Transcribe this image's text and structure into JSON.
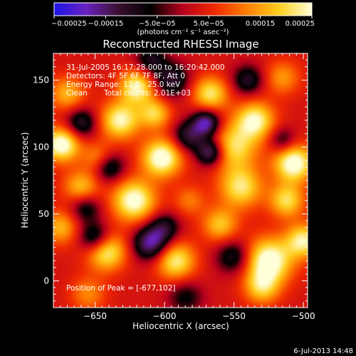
{
  "chart_data": {
    "type": "heatmap",
    "title": "Reconstructed RHESSI Image",
    "xlabel": "Heliocentric X (arcsec)",
    "ylabel": "Heliocentric Y (arcsec)",
    "xlim": [
      -680,
      -497
    ],
    "ylim": [
      -20,
      170
    ],
    "xticks": [
      -650,
      -600,
      -550,
      -500
    ],
    "yticks": [
      0,
      50,
      100,
      150
    ],
    "xtick_labels": [
      "−650",
      "−600",
      "−550",
      "−500"
    ],
    "ytick_labels": [
      "0",
      "50",
      "100",
      "150"
    ],
    "colorbar": {
      "range": [
        -0.00025,
        0.00025
      ],
      "tick_values": [
        -0.00025,
        -0.00015,
        -5e-05,
        5e-05,
        0.00015,
        0.00025
      ],
      "tick_labels": [
        "−0.00025",
        "−0.00015",
        "−5.0e−05",
        "5.0e−05",
        "0.00015",
        "0.00025"
      ],
      "units_label": "(photons cm⁻² s⁻¹ asec⁻²)",
      "colors": [
        "#1a14e6",
        "#6a22c0",
        "#3a1030",
        "#000000",
        "#b8001e",
        "#f02a00",
        "#ff8000",
        "#ffd020",
        "#ffffd8"
      ]
    },
    "annotations": {
      "time_range": "31-Jul-2005 16:17:28.000 to 16:20:42.000",
      "detectors": "Detectors: 4F 5F 6F 7F 8F, Att 0",
      "energy": "Energy Range: 12.0 - 25.0 keV",
      "clean": "Clean",
      "total_counts": "Total counts: 2.01E+03",
      "peak": "Position of Peak = [-677,102]"
    },
    "sources": [
      {
        "x": -674,
        "y": 102,
        "v": 1.0,
        "s": 9
      },
      {
        "x": -632,
        "y": 120,
        "v": 0.85,
        "s": 10
      },
      {
        "x": -602,
        "y": 92,
        "v": 1.0,
        "s": 10
      },
      {
        "x": -622,
        "y": 60,
        "v": 0.95,
        "s": 11
      },
      {
        "x": -550,
        "y": 100,
        "v": 0.7,
        "s": 12
      },
      {
        "x": -545,
        "y": 70,
        "v": 0.75,
        "s": 11
      },
      {
        "x": -507,
        "y": 88,
        "v": 1.0,
        "s": 10
      },
      {
        "x": -620,
        "y": 145,
        "v": 0.85,
        "s": 9
      },
      {
        "x": -567,
        "y": 140,
        "v": 0.75,
        "s": 9
      },
      {
        "x": -535,
        "y": 120,
        "v": 0.85,
        "s": 10
      },
      {
        "x": -515,
        "y": 152,
        "v": 0.45,
        "s": 9
      },
      {
        "x": -642,
        "y": 22,
        "v": 0.85,
        "s": 10
      },
      {
        "x": -592,
        "y": 15,
        "v": 0.8,
        "s": 10
      },
      {
        "x": -525,
        "y": 15,
        "v": 1.0,
        "s": 12
      },
      {
        "x": -500,
        "y": 30,
        "v": 0.8,
        "s": 9
      },
      {
        "x": -560,
        "y": 42,
        "v": 0.6,
        "s": 9
      },
      {
        "x": -660,
        "y": 70,
        "v": 0.6,
        "s": 9
      },
      {
        "x": -670,
        "y": 140,
        "v": 0.55,
        "s": 9
      },
      {
        "x": -607,
        "y": 125,
        "v": 0.65,
        "s": 8
      },
      {
        "x": -512,
        "y": 60,
        "v": 0.7,
        "s": 9
      },
      {
        "x": -675,
        "y": 40,
        "v": 0.55,
        "s": 9
      },
      {
        "x": -648,
        "y": 92,
        "v": 0.45,
        "s": 8
      },
      {
        "x": -582,
        "y": 60,
        "v": 0.35,
        "s": 8
      },
      {
        "x": -530,
        "y": -5,
        "v": 0.6,
        "s": 9
      },
      {
        "x": -655,
        "y": -10,
        "v": 0.4,
        "s": 9
      },
      {
        "x": -650,
        "y": 32,
        "v": -0.7,
        "s": 8
      },
      {
        "x": -610,
        "y": 28,
        "v": -0.85,
        "s": 9
      },
      {
        "x": -570,
        "y": 118,
        "v": -0.9,
        "s": 7
      },
      {
        "x": -567,
        "y": 96,
        "v": -0.85,
        "s": 7
      },
      {
        "x": -583,
        "y": 108,
        "v": -0.6,
        "s": 8
      },
      {
        "x": -660,
        "y": 118,
        "v": -0.6,
        "s": 8
      },
      {
        "x": -595,
        "y": 150,
        "v": -0.6,
        "s": 9
      },
      {
        "x": -640,
        "y": 85,
        "v": -0.6,
        "s": 8
      },
      {
        "x": -600,
        "y": 40,
        "v": -0.5,
        "s": 8
      },
      {
        "x": -550,
        "y": 18,
        "v": -0.55,
        "s": 9
      },
      {
        "x": -515,
        "y": 105,
        "v": -0.45,
        "s": 7
      },
      {
        "x": -657,
        "y": 55,
        "v": -0.5,
        "s": 8
      },
      {
        "x": -540,
        "y": 150,
        "v": -0.55,
        "s": 8
      },
      {
        "x": -610,
        "y": 165,
        "v": -0.5,
        "s": 8
      },
      {
        "x": -585,
        "y": -12,
        "v": -0.4,
        "s": 9
      }
    ]
  },
  "footer": {
    "timestamp": "6-Jul-2013 14:48"
  }
}
